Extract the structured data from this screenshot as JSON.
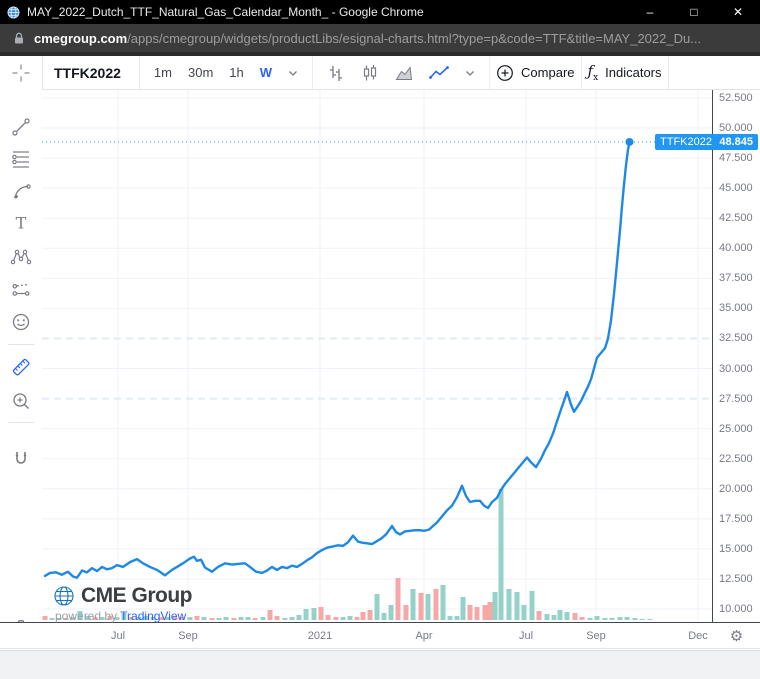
{
  "window": {
    "title": "MAY_2022_Dutch_TTF_Natural_Gas_Calendar_Month_ - Google Chrome",
    "minimize": "–",
    "maximize": "□",
    "close": "✕"
  },
  "address_bar": {
    "domain": "cmegroup.com",
    "path": "/apps/cmegroup/widgets/productLibs/esignal-charts.html?type=p&code=TTF&title=MAY_2022_Du..."
  },
  "toolbar": {
    "symbol": "TTFK2022",
    "intervals": [
      "1m",
      "30m",
      "1h",
      "W"
    ],
    "active_interval": "W",
    "compare_label": "Compare",
    "indicators_label": "Indicators"
  },
  "left_toolbar": {
    "tools": [
      "crosshair",
      "trend-line",
      "fib-retracement",
      "brush",
      "text",
      "xabcd-pattern",
      "forecast",
      "emoji",
      "measure-ruler",
      "zoom-in",
      "magnet",
      "camera"
    ],
    "active_tool": "measure-ruler"
  },
  "price_label": {
    "symbol": "TTFK2022",
    "price": "48.845"
  },
  "logo": {
    "brand": "CME Group",
    "powered_by": "powered by",
    "provider": "TradingView"
  },
  "axis_corner": {
    "gear": "⚙"
  },
  "colors": {
    "line": "#1e88e5",
    "label_bg": "#2196f3",
    "volume_up": "#94d2c9",
    "volume_down": "#f5a8a5",
    "grid": "#eef2f8",
    "grid_dashed": "#e2ebf3",
    "axis_text": "#787b86",
    "axis_line": "#42464e",
    "accent_blue": "#2962ff"
  },
  "chart_data": {
    "type": "line",
    "symbol": "TTFK2022",
    "title": "MAY 2022 Dutch TTF Natural Gas Calendar Month",
    "interval": "W",
    "last_price": 48.845,
    "y_axis": {
      "min": 10,
      "max": 52.5,
      "tick_step": 2.5,
      "ticks": [
        52.5,
        50,
        47.5,
        45,
        42.5,
        40,
        37.5,
        35,
        32.5,
        30,
        27.5,
        25,
        22.5,
        20,
        17.5,
        15,
        12.5,
        10
      ]
    },
    "x_axis": {
      "tick_labels": [
        "Jul",
        "Sep",
        "2021",
        "Apr",
        "Jul",
        "Sep",
        "Dec"
      ],
      "tick_x": [
        118,
        188,
        320,
        424,
        526,
        596,
        698
      ]
    },
    "dashed_levels": [
      32.5,
      27.5
    ],
    "points": [
      [
        45,
        12.75
      ],
      [
        50,
        13.0
      ],
      [
        56,
        13.05
      ],
      [
        62,
        12.85
      ],
      [
        68,
        13.1
      ],
      [
        73,
        12.7
      ],
      [
        77,
        12.6
      ],
      [
        82,
        13.2
      ],
      [
        87,
        13.05
      ],
      [
        92,
        13.4
      ],
      [
        97,
        13.15
      ],
      [
        102,
        13.5
      ],
      [
        107,
        13.3
      ],
      [
        112,
        13.4
      ],
      [
        117,
        13.65
      ],
      [
        123,
        13.5
      ],
      [
        130,
        13.9
      ],
      [
        137,
        14.15
      ],
      [
        143,
        13.8
      ],
      [
        150,
        13.5
      ],
      [
        157,
        13.25
      ],
      [
        165,
        12.8
      ],
      [
        172,
        13.25
      ],
      [
        178,
        13.55
      ],
      [
        183,
        13.8
      ],
      [
        190,
        14.2
      ],
      [
        194,
        14.35
      ],
      [
        197,
        14.0
      ],
      [
        201,
        14.1
      ],
      [
        205,
        13.45
      ],
      [
        212,
        13.1
      ],
      [
        218,
        13.5
      ],
      [
        225,
        13.8
      ],
      [
        232,
        13.7
      ],
      [
        238,
        13.75
      ],
      [
        245,
        13.8
      ],
      [
        250,
        13.5
      ],
      [
        256,
        13.1
      ],
      [
        262,
        13.0
      ],
      [
        267,
        13.2
      ],
      [
        272,
        13.5
      ],
      [
        277,
        13.25
      ],
      [
        282,
        13.5
      ],
      [
        287,
        13.4
      ],
      [
        292,
        13.6
      ],
      [
        297,
        13.5
      ],
      [
        302,
        13.75
      ],
      [
        307,
        14.05
      ],
      [
        312,
        14.3
      ],
      [
        317,
        14.65
      ],
      [
        322,
        14.9
      ],
      [
        327,
        15.1
      ],
      [
        333,
        15.2
      ],
      [
        338,
        15.3
      ],
      [
        343,
        15.25
      ],
      [
        348,
        15.55
      ],
      [
        353,
        16.1
      ],
      [
        358,
        15.6
      ],
      [
        363,
        15.5
      ],
      [
        368,
        15.45
      ],
      [
        372,
        15.4
      ],
      [
        376,
        15.6
      ],
      [
        381,
        15.85
      ],
      [
        386,
        16.2
      ],
      [
        392,
        16.9
      ],
      [
        396,
        16.4
      ],
      [
        400,
        16.2
      ],
      [
        405,
        16.45
      ],
      [
        410,
        16.5
      ],
      [
        415,
        16.55
      ],
      [
        420,
        16.55
      ],
      [
        424,
        16.5
      ],
      [
        429,
        16.6
      ],
      [
        433,
        16.9
      ],
      [
        437,
        17.2
      ],
      [
        442,
        17.7
      ],
      [
        447,
        18.2
      ],
      [
        452,
        18.6
      ],
      [
        457,
        19.3
      ],
      [
        462,
        20.25
      ],
      [
        466,
        19.4
      ],
      [
        470,
        18.9
      ],
      [
        475,
        19.0
      ],
      [
        480,
        19.0
      ],
      [
        484,
        18.6
      ],
      [
        488,
        18.4
      ],
      [
        492,
        18.9
      ],
      [
        497,
        19.25
      ],
      [
        501,
        19.9
      ],
      [
        505,
        20.4
      ],
      [
        509,
        20.8
      ],
      [
        513,
        21.2
      ],
      [
        517,
        21.6
      ],
      [
        521,
        22.0
      ],
      [
        527,
        22.6
      ],
      [
        531,
        22.2
      ],
      [
        536,
        21.8
      ],
      [
        541,
        22.5
      ],
      [
        545,
        23.2
      ],
      [
        549,
        23.8
      ],
      [
        553,
        24.6
      ],
      [
        557,
        25.6
      ],
      [
        561,
        26.6
      ],
      [
        564,
        27.3
      ],
      [
        567,
        28.05
      ],
      [
        571,
        27.0
      ],
      [
        574,
        26.4
      ],
      [
        578,
        26.9
      ],
      [
        581,
        27.3
      ],
      [
        585,
        28.0
      ],
      [
        588,
        28.5
      ],
      [
        591,
        29.1
      ],
      [
        594,
        30.0
      ],
      [
        597,
        30.9
      ],
      [
        601,
        31.3
      ],
      [
        605,
        31.7
      ],
      [
        608,
        32.5
      ],
      [
        611,
        34.0
      ],
      [
        614,
        36.2
      ],
      [
        617,
        38.8
      ],
      [
        620,
        41.5
      ],
      [
        622,
        43.5
      ],
      [
        624,
        45.3
      ],
      [
        626,
        46.9
      ],
      [
        628,
        48.2
      ],
      [
        629.5,
        48.845
      ]
    ],
    "volume": [
      [
        45,
        4,
        "d"
      ],
      [
        52,
        2,
        "u"
      ],
      [
        59,
        2,
        "u"
      ],
      [
        66,
        2,
        "d"
      ],
      [
        73,
        3,
        "u"
      ],
      [
        80,
        9,
        "u"
      ],
      [
        88,
        4,
        "u"
      ],
      [
        95,
        3,
        "d"
      ],
      [
        102,
        3,
        "u"
      ],
      [
        110,
        4,
        "d"
      ],
      [
        117,
        3,
        "u"
      ],
      [
        124,
        7,
        "u"
      ],
      [
        131,
        3,
        "d"
      ],
      [
        139,
        3,
        "u"
      ],
      [
        146,
        4,
        "u"
      ],
      [
        153,
        3,
        "u"
      ],
      [
        161,
        3,
        "d"
      ],
      [
        168,
        3,
        "u"
      ],
      [
        175,
        3,
        "d"
      ],
      [
        182,
        3,
        "d"
      ],
      [
        190,
        3,
        "u"
      ],
      [
        197,
        4,
        "d"
      ],
      [
        204,
        3,
        "u"
      ],
      [
        212,
        2,
        "d"
      ],
      [
        219,
        2,
        "u"
      ],
      [
        226,
        3,
        "u"
      ],
      [
        234,
        2,
        "d"
      ],
      [
        241,
        3,
        "u"
      ],
      [
        248,
        3,
        "u"
      ],
      [
        255,
        2,
        "d"
      ],
      [
        263,
        3,
        "u"
      ],
      [
        270,
        10,
        "d"
      ],
      [
        277,
        4,
        "d"
      ],
      [
        285,
        2,
        "u"
      ],
      [
        292,
        3,
        "u"
      ],
      [
        299,
        5,
        "u"
      ],
      [
        306,
        11,
        "u"
      ],
      [
        314,
        12,
        "u"
      ],
      [
        321,
        13,
        "d"
      ],
      [
        328,
        5,
        "d"
      ],
      [
        336,
        3,
        "d"
      ],
      [
        343,
        3,
        "u"
      ],
      [
        350,
        4,
        "u"
      ],
      [
        357,
        3,
        "d"
      ],
      [
        363,
        8,
        "d"
      ],
      [
        370,
        10,
        "d"
      ],
      [
        377,
        26,
        "u"
      ],
      [
        384,
        7,
        "u"
      ],
      [
        391,
        15,
        "u"
      ],
      [
        398,
        42,
        "d"
      ],
      [
        406,
        15,
        "d"
      ],
      [
        413,
        31,
        "u"
      ],
      [
        421,
        27,
        "d"
      ],
      [
        428,
        26,
        "u"
      ],
      [
        436,
        31,
        "d"
      ],
      [
        443,
        35,
        "u"
      ],
      [
        450,
        4,
        "u"
      ],
      [
        457,
        4,
        "u"
      ],
      [
        463,
        23,
        "u"
      ],
      [
        470,
        15,
        "d"
      ],
      [
        477,
        13,
        "d"
      ],
      [
        485,
        15,
        "d"
      ],
      [
        490,
        18,
        "d"
      ],
      [
        495,
        28,
        "u"
      ],
      [
        501,
        131,
        "u"
      ],
      [
        509,
        31,
        "u"
      ],
      [
        517,
        28,
        "u"
      ],
      [
        524,
        15,
        "u"
      ],
      [
        532,
        29,
        "u"
      ],
      [
        539,
        9,
        "d"
      ],
      [
        547,
        6,
        "u"
      ],
      [
        554,
        5,
        "u"
      ],
      [
        560,
        10,
        "u"
      ],
      [
        567,
        8,
        "u"
      ],
      [
        575,
        7,
        "d"
      ],
      [
        582,
        3,
        "d"
      ],
      [
        590,
        2,
        "u"
      ],
      [
        597,
        4,
        "u"
      ],
      [
        605,
        2,
        "u"
      ],
      [
        612,
        2,
        "u"
      ],
      [
        620,
        3,
        "u"
      ],
      [
        627,
        3,
        "u"
      ],
      [
        635,
        2,
        "u"
      ],
      [
        642,
        1,
        "u"
      ],
      [
        650,
        1,
        "u"
      ]
    ]
  }
}
